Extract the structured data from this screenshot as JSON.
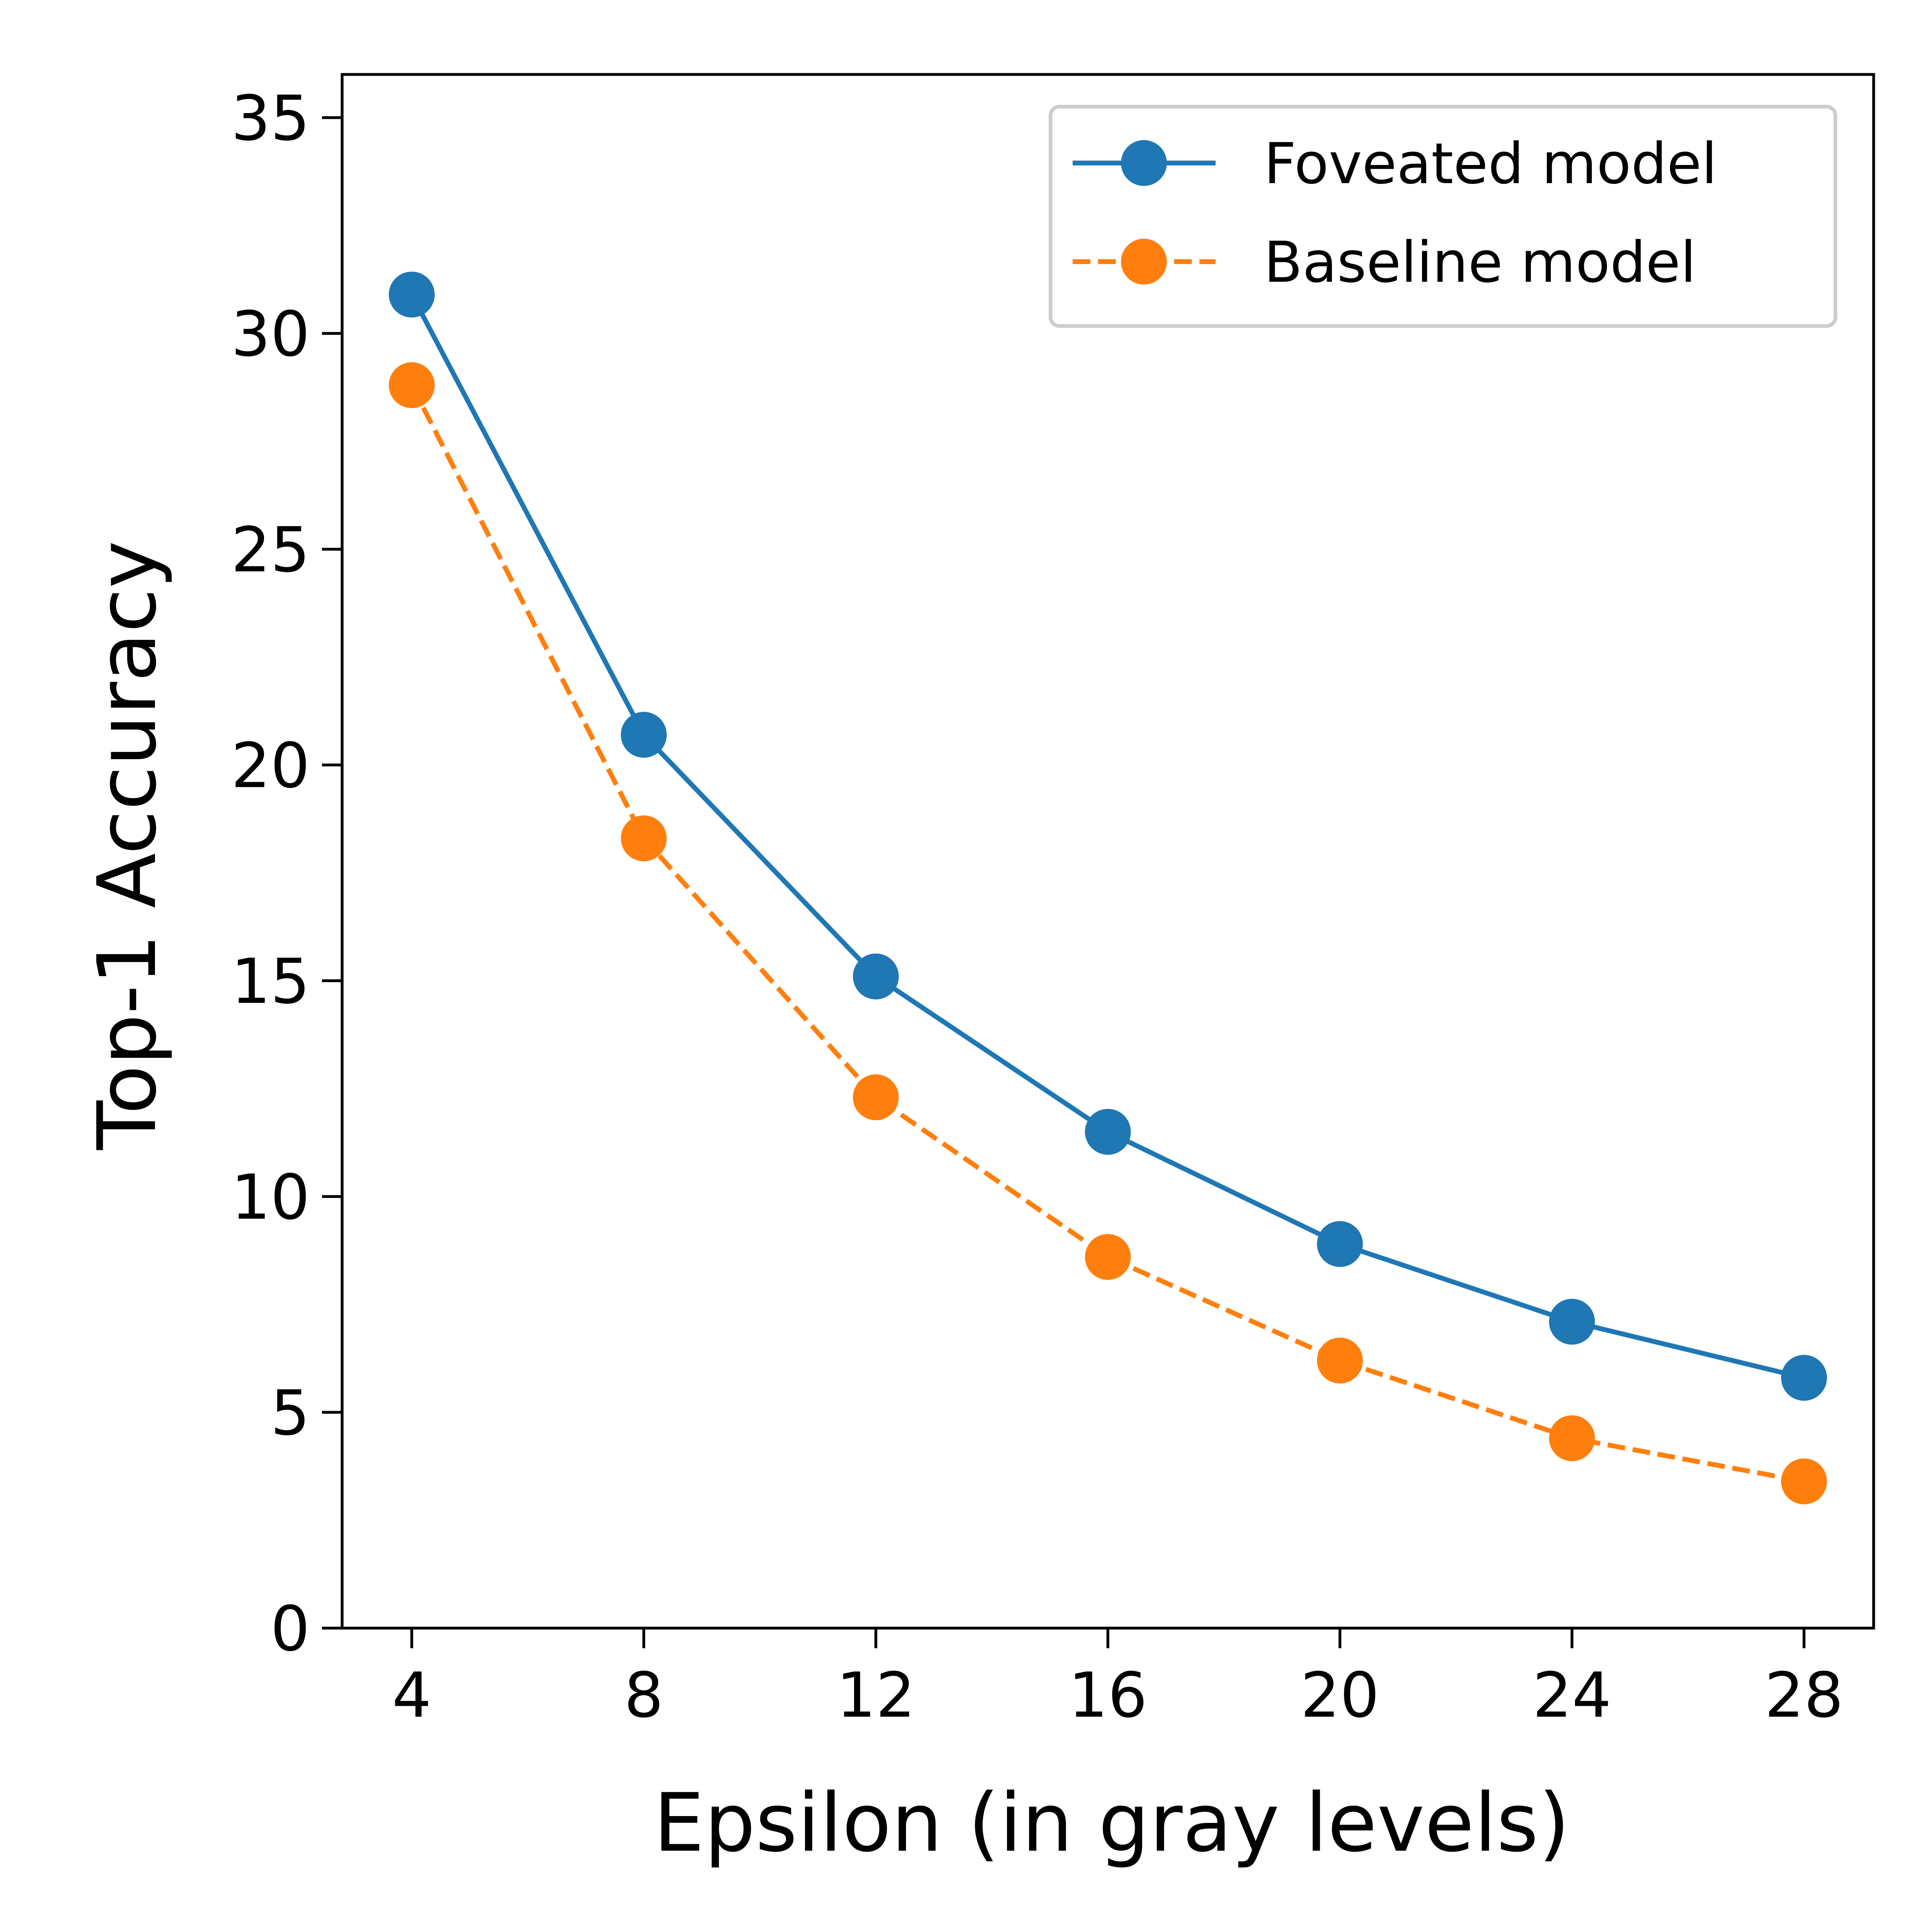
{
  "chart_data": {
    "type": "line",
    "title": "",
    "xlabel": "Epsilon (in gray levels)",
    "ylabel": "Top-1 Accuracy",
    "x": [
      4,
      8,
      12,
      16,
      20,
      24,
      28
    ],
    "xticks": [
      "4",
      "8",
      "12",
      "16",
      "20",
      "24",
      "28"
    ],
    "yticks": [
      "0",
      "5",
      "10",
      "15",
      "20",
      "25",
      "30",
      "35"
    ],
    "xlim": [
      2.8,
      29.2
    ],
    "ylim": [
      0,
      36
    ],
    "grid": false,
    "legend_position": "top-right",
    "series": [
      {
        "name": "Foveated model",
        "values": [
          30.9,
          20.7,
          15.1,
          11.5,
          8.9,
          7.1,
          5.8
        ],
        "color": "#1f77b4",
        "linestyle": "solid",
        "marker": "circle"
      },
      {
        "name": "Baseline model",
        "values": [
          28.8,
          18.3,
          12.3,
          8.6,
          6.2,
          4.4,
          3.4
        ],
        "color": "#ff7f0e",
        "linestyle": "dashed",
        "marker": "circle"
      }
    ]
  }
}
